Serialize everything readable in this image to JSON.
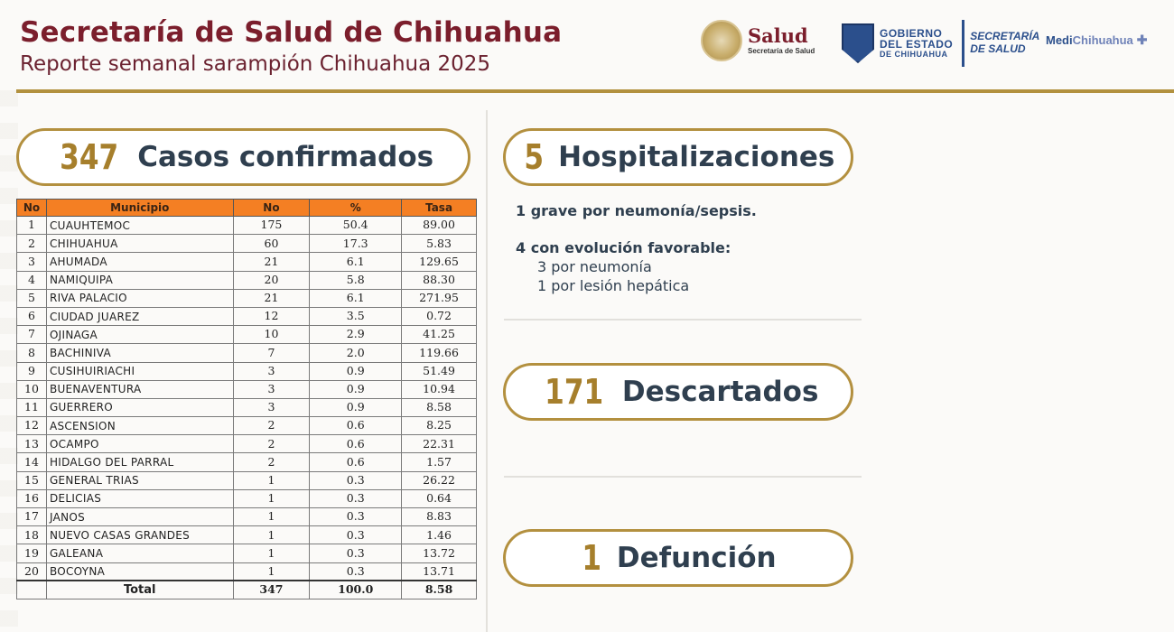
{
  "header": {
    "title": "Secretaría de Salud de Chihuahua",
    "subtitle": "Reporte semanal sarampión Chihuahua 2025"
  },
  "logos": {
    "salud_big": "Salud",
    "salud_small": "Secretaría de Salud",
    "gob_l1": "GOBIERNO",
    "gob_l2": "DEL ESTADO",
    "gob_l3": "DE CHIHUAHUA",
    "sec_l1": "SECRETARÍA",
    "sec_l2": "DE SALUD",
    "medi_a": "Medi",
    "medi_b": "Chihuahua"
  },
  "confirmed": {
    "number": "347",
    "label": "Casos confirmados"
  },
  "table": {
    "headers": [
      "No",
      "Municipio",
      "No",
      "%",
      "Tasa"
    ],
    "rows": [
      {
        "no": "1",
        "municipio": "CUAUHTEMOC",
        "casos": "175",
        "pct": "50.4",
        "tasa": "89.00"
      },
      {
        "no": "2",
        "municipio": "CHIHUAHUA",
        "casos": "60",
        "pct": "17.3",
        "tasa": "5.83"
      },
      {
        "no": "3",
        "municipio": "AHUMADA",
        "casos": "21",
        "pct": "6.1",
        "tasa": "129.65"
      },
      {
        "no": "4",
        "municipio": "NAMIQUIPA",
        "casos": "20",
        "pct": "5.8",
        "tasa": "88.30"
      },
      {
        "no": "5",
        "municipio": "RIVA PALACIO",
        "casos": "21",
        "pct": "6.1",
        "tasa": "271.95"
      },
      {
        "no": "6",
        "municipio": "CIUDAD JUAREZ",
        "casos": "12",
        "pct": "3.5",
        "tasa": "0.72"
      },
      {
        "no": "7",
        "municipio": "OJINAGA",
        "casos": "10",
        "pct": "2.9",
        "tasa": "41.25"
      },
      {
        "no": "8",
        "municipio": "BACHINIVA",
        "casos": "7",
        "pct": "2.0",
        "tasa": "119.66"
      },
      {
        "no": "9",
        "municipio": "CUSIHUIRIACHI",
        "casos": "3",
        "pct": "0.9",
        "tasa": "51.49"
      },
      {
        "no": "10",
        "municipio": "BUENAVENTURA",
        "casos": "3",
        "pct": "0.9",
        "tasa": "10.94"
      },
      {
        "no": "11",
        "municipio": "GUERRERO",
        "casos": "3",
        "pct": "0.9",
        "tasa": "8.58"
      },
      {
        "no": "12",
        "municipio": "ASCENSION",
        "casos": "2",
        "pct": "0.6",
        "tasa": "8.25"
      },
      {
        "no": "13",
        "municipio": "OCAMPO",
        "casos": "2",
        "pct": "0.6",
        "tasa": "22.31"
      },
      {
        "no": "14",
        "municipio": "HIDALGO DEL PARRAL",
        "casos": "2",
        "pct": "0.6",
        "tasa": "1.57"
      },
      {
        "no": "15",
        "municipio": "GENERAL TRIAS",
        "casos": "1",
        "pct": "0.3",
        "tasa": "26.22"
      },
      {
        "no": "16",
        "municipio": "DELICIAS",
        "casos": "1",
        "pct": "0.3",
        "tasa": "0.64"
      },
      {
        "no": "17",
        "municipio": "JANOS",
        "casos": "1",
        "pct": "0.3",
        "tasa": "8.83"
      },
      {
        "no": "18",
        "municipio": "NUEVO CASAS GRANDES",
        "casos": "1",
        "pct": "0.3",
        "tasa": "1.46"
      },
      {
        "no": "19",
        "municipio": "GALEANA",
        "casos": "1",
        "pct": "0.3",
        "tasa": "13.72"
      },
      {
        "no": "20",
        "municipio": "BOCOYNA",
        "casos": "1",
        "pct": "0.3",
        "tasa": "13.71"
      }
    ],
    "total": {
      "label": "Total",
      "casos": "347",
      "pct": "100.0",
      "tasa": "8.58"
    }
  },
  "hospitalizations": {
    "number": "5",
    "label": "Hospitalizaciones",
    "grave": "1 grave por neumonía/sepsis.",
    "favorable": "4 con evolución favorable:",
    "detail_1": "3 por neumonía",
    "detail_2": "1 por lesión hepática"
  },
  "discarded": {
    "number": "171",
    "label": "Descartados"
  },
  "deaths": {
    "number": "1",
    "label": "Defunción"
  },
  "colors": {
    "title": "#7b1e2c",
    "gold": "#b3903f",
    "header_orange": "#f47f23",
    "text_dark": "#2f3f4f"
  }
}
